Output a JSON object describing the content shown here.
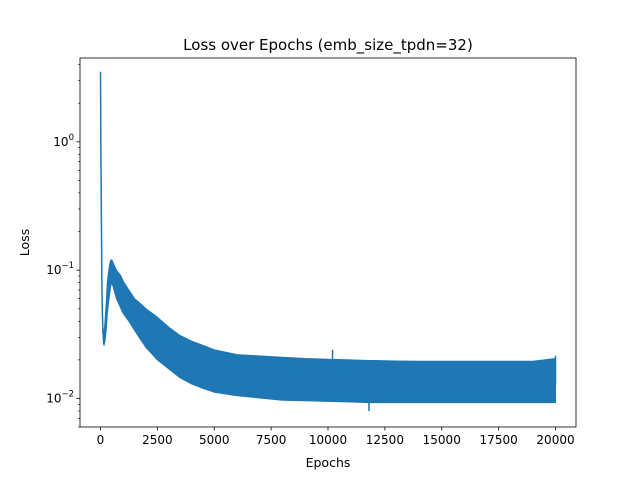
{
  "chart_data": {
    "type": "line",
    "title": "Loss over Epochs (emb_size_tpdn=32)",
    "xlabel": "Epochs",
    "ylabel": "Loss",
    "xscale": "linear",
    "yscale": "log",
    "xlim": [
      -900,
      20900
    ],
    "ylim": [
      0.006,
      4.5
    ],
    "grid": false,
    "line_color": "#1f77b4",
    "x_ticks": [
      0,
      2500,
      5000,
      7500,
      10000,
      12500,
      15000,
      17500,
      20000
    ],
    "y_ticks": [
      {
        "value": 0.01,
        "base": "10",
        "exponent": "−2"
      },
      {
        "value": 0.1,
        "base": "10",
        "exponent": "−1"
      },
      {
        "value": 1,
        "base": "10",
        "exponent": "0"
      }
    ],
    "series": [
      {
        "x": [
          0,
          20,
          40,
          60,
          80,
          100,
          130,
          160,
          200,
          250,
          300,
          350,
          400,
          450,
          500,
          550,
          600,
          700,
          800,
          900,
          1000,
          1250,
          1500,
          1750,
          2000,
          2500,
          3000,
          3500,
          4000,
          4500,
          5000,
          6000,
          7000,
          7500,
          8000,
          9000,
          10000,
          11000,
          11800,
          12000,
          12500,
          13000,
          14000,
          15000,
          16000,
          17000,
          18000,
          19000,
          20000
        ],
        "y": [
          3.5,
          0.8,
          0.25,
          0.09,
          0.05,
          0.035,
          0.03,
          0.028,
          0.033,
          0.042,
          0.06,
          0.075,
          0.09,
          0.1,
          0.11,
          0.1,
          0.095,
          0.085,
          0.078,
          0.07,
          0.065,
          0.055,
          0.047,
          0.042,
          0.037,
          0.031,
          0.026,
          0.022,
          0.02,
          0.0185,
          0.017,
          0.0155,
          0.015,
          0.0145,
          0.014,
          0.0138,
          0.0135,
          0.0133,
          0.0132,
          0.0132,
          0.013,
          0.013,
          0.0128,
          0.0128,
          0.0127,
          0.0127,
          0.0127,
          0.0127,
          0.0128
        ],
        "band_lower": [
          3.5,
          0.8,
          0.25,
          0.09,
          0.05,
          0.033,
          0.027,
          0.026,
          0.028,
          0.034,
          0.045,
          0.055,
          0.065,
          0.075,
          0.08,
          0.075,
          0.07,
          0.06,
          0.055,
          0.05,
          0.046,
          0.04,
          0.034,
          0.029,
          0.025,
          0.02,
          0.017,
          0.0145,
          0.013,
          0.012,
          0.0112,
          0.0105,
          0.0101,
          0.0099,
          0.0097,
          0.0096,
          0.0095,
          0.0094,
          0.0093,
          0.0093,
          0.0093,
          0.0093,
          0.0093,
          0.0093,
          0.0093,
          0.0093,
          0.0093,
          0.0093,
          0.0093
        ],
        "band_upper": [
          3.5,
          0.8,
          0.25,
          0.09,
          0.05,
          0.037,
          0.034,
          0.031,
          0.04,
          0.055,
          0.08,
          0.095,
          0.11,
          0.12,
          0.12,
          0.115,
          0.11,
          0.1,
          0.095,
          0.09,
          0.082,
          0.07,
          0.06,
          0.055,
          0.05,
          0.043,
          0.036,
          0.031,
          0.028,
          0.026,
          0.024,
          0.022,
          0.0215,
          0.0212,
          0.021,
          0.0205,
          0.0202,
          0.02,
          0.0198,
          0.0198,
          0.0197,
          0.0196,
          0.0195,
          0.0195,
          0.0195,
          0.0195,
          0.0195,
          0.0195,
          0.0205
        ],
        "outliers": [
          [
            11800,
            0.008
          ],
          [
            10200,
            0.024
          ],
          [
            20000,
            0.0215
          ]
        ]
      }
    ]
  }
}
